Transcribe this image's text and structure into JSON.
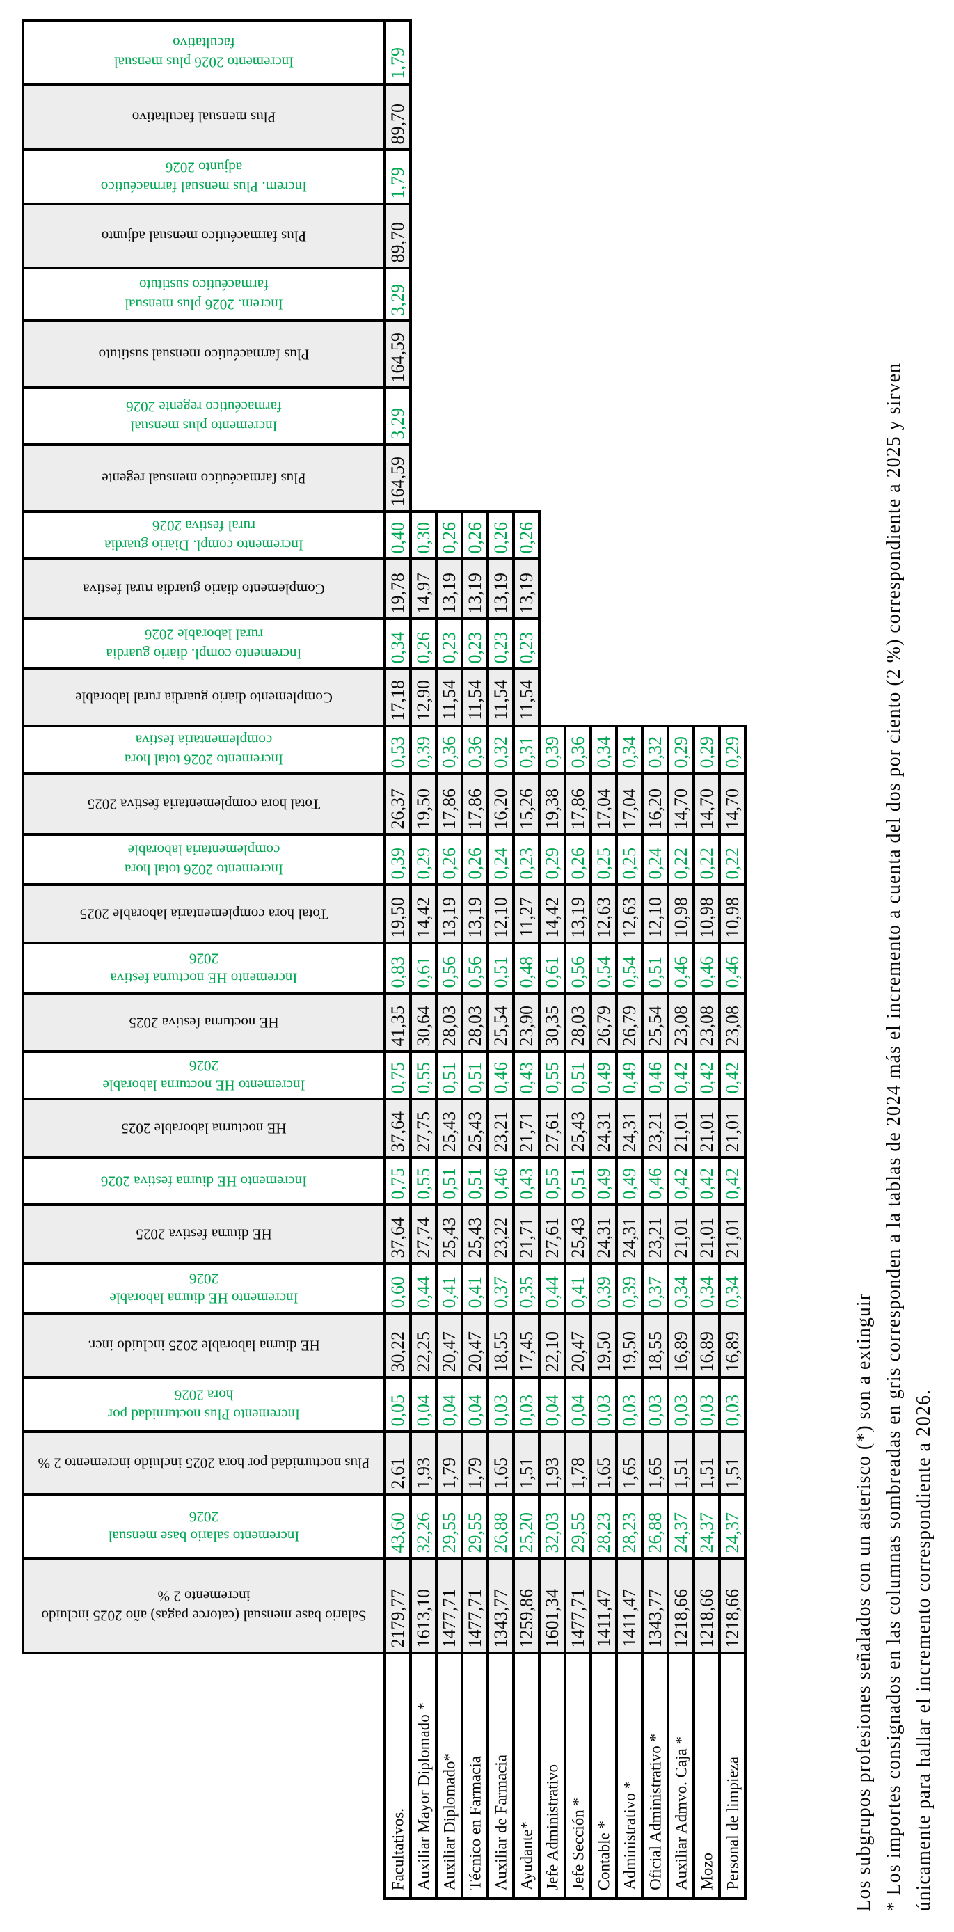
{
  "colors": {
    "green_text": "#00a651",
    "shaded_bg": "#ededed",
    "border": "#000000"
  },
  "table": {
    "categories": [
      "Facultativos.",
      "Auxiliar Mayor Diplomado *",
      "Auxiliar Diplomado*",
      "Técnico en Farmacia",
      "Auxiliar de Farmacia",
      "Ayudante*",
      "Jefe Administrativo",
      "Jefe Sección *",
      "Contable *",
      "Administrativo *",
      "Oficial Administrativo *",
      "Auxiliar Admvo. Caja *",
      "Mozo",
      "Personal de limpieza"
    ],
    "rows": [
      {
        "label": "Incremento 2026 plus mensual facultativo",
        "type": "increment",
        "values": [
          "1,79"
        ]
      },
      {
        "label": "Plus mensual facultativo",
        "type": "base",
        "values": [
          "89,70"
        ]
      },
      {
        "label": "Increm. Plus mensual farmacéutico adjunto 2026",
        "type": "increment",
        "values": [
          "1,79"
        ]
      },
      {
        "label": "Plus farmacéutico mensual adjunto",
        "type": "base",
        "values": [
          "89,70"
        ]
      },
      {
        "label": "Increm. 2026 plus mensual farmacéutico sustituto",
        "type": "increment",
        "values": [
          "3,29"
        ]
      },
      {
        "label": "Plus farmacéutico mensual sustituto",
        "type": "base",
        "values": [
          "164,59"
        ]
      },
      {
        "label": "Incremento plus mensual farmacéutico regente 2026",
        "type": "increment",
        "values": [
          "3,29"
        ]
      },
      {
        "label": "Plus farmacéutico mensual regente",
        "type": "base",
        "values": [
          "164,59"
        ]
      },
      {
        "label": "Incremento compl. Diario guardia rural festiva 2026",
        "type": "increment",
        "values": [
          "0,40",
          "0,30",
          "0,26",
          "0,26",
          "0,26",
          "0,26"
        ]
      },
      {
        "label": "Complemento diario guardia rural festiva",
        "type": "base",
        "values": [
          "19,78",
          "14,97",
          "13,19",
          "13,19",
          "13,19",
          "13,19"
        ]
      },
      {
        "label": "Incremento compl. diario guardia rural laborable 2026",
        "type": "increment",
        "values": [
          "0,34",
          "0,26",
          "0,23",
          "0,23",
          "0,23",
          "0,23"
        ]
      },
      {
        "label": "Complemento diario guardia rural laborable",
        "type": "base",
        "values": [
          "17,18",
          "12,90",
          "11,54",
          "11,54",
          "11,54",
          "11,54"
        ]
      },
      {
        "label": "Incremento 2026 total hora complementaria festiva",
        "type": "increment",
        "values": [
          "0,53",
          "0,39",
          "0,36",
          "0,36",
          "0,32",
          "0,31",
          "0,39",
          "0,36",
          "0,34",
          "0,34",
          "0,32",
          "0,29",
          "0,29",
          "0,29"
        ]
      },
      {
        "label": "Total hora complementaria festiva 2025",
        "type": "base",
        "values": [
          "26,37",
          "19,50",
          "17,86",
          "17,86",
          "16,20",
          "15,26",
          "19,38",
          "17,86",
          "17,04",
          "17,04",
          "16,20",
          "14,70",
          "14,70",
          "14,70"
        ]
      },
      {
        "label": "Incremento 2026 total hora complementaria laborable",
        "type": "increment",
        "values": [
          "0,39",
          "0,29",
          "0,26",
          "0,26",
          "0,24",
          "0,23",
          "0,29",
          "0,26",
          "0,25",
          "0,25",
          "0,24",
          "0,22",
          "0,22",
          "0,22"
        ]
      },
      {
        "label": "Total hora complementaria laborable 2025",
        "type": "base",
        "values": [
          "19,50",
          "14,42",
          "13,19",
          "13,19",
          "12,10",
          "11,27",
          "14,42",
          "13,19",
          "12,63",
          "12,63",
          "12,10",
          "10,98",
          "10,98",
          "10,98"
        ]
      },
      {
        "label": "Incremento HE nocturna festiva 2026",
        "type": "increment",
        "values": [
          "0,83",
          "0,61",
          "0,56",
          "0,56",
          "0,51",
          "0,48",
          "0,61",
          "0,56",
          "0,54",
          "0,54",
          "0,51",
          "0,46",
          "0,46",
          "0,46"
        ]
      },
      {
        "label": "HE nocturna festiva 2025",
        "type": "base",
        "values": [
          "41,35",
          "30,64",
          "28,03",
          "28,03",
          "25,54",
          "23,90",
          "30,35",
          "28,03",
          "26,79",
          "26,79",
          "25,54",
          "23,08",
          "23,08",
          "23,08"
        ]
      },
      {
        "label": "Incremento HE nocturna laborable 2026",
        "type": "increment",
        "values": [
          "0,75",
          "0,55",
          "0,51",
          "0,51",
          "0,46",
          "0,43",
          "0,55",
          "0,51",
          "0,49",
          "0,49",
          "0,46",
          "0,42",
          "0,42",
          "0,42"
        ]
      },
      {
        "label": "HE nocturna laborable 2025",
        "type": "base",
        "values": [
          "37,64",
          "27,75",
          "25,43",
          "25,43",
          "23,21",
          "21,71",
          "27,61",
          "25,43",
          "24,31",
          "24,31",
          "23,21",
          "21,01",
          "21,01",
          "21,01"
        ]
      },
      {
        "label": "Incremento HE diurna festiva 2026",
        "type": "increment",
        "values": [
          "0,75",
          "0,55",
          "0,51",
          "0,51",
          "0,46",
          "0,43",
          "0,55",
          "0,51",
          "0,49",
          "0,49",
          "0,46",
          "0,42",
          "0,42",
          "0,42"
        ]
      },
      {
        "label": "HE diurna festiva 2025",
        "type": "base",
        "values": [
          "37,64",
          "27,74",
          "25,43",
          "25,43",
          "23,22",
          "21,71",
          "27,61",
          "25,43",
          "24,31",
          "24,31",
          "23,21",
          "21,01",
          "21,01",
          "21,01"
        ]
      },
      {
        "label": "Incremento HE diurna laborable 2026",
        "type": "increment",
        "values": [
          "0,60",
          "0,44",
          "0,41",
          "0,41",
          "0,37",
          "0,35",
          "0,44",
          "0,41",
          "0,39",
          "0,39",
          "0,37",
          "0,34",
          "0,34",
          "0,34"
        ]
      },
      {
        "label": "HE diurna laborable 2025 incluido incr.",
        "type": "base",
        "values": [
          "30,22",
          "22,25",
          "20,47",
          "20,47",
          "18,55",
          "17,45",
          "22,10",
          "20,47",
          "19,50",
          "19,50",
          "18,55",
          "16,89",
          "16,89",
          "16,89"
        ]
      },
      {
        "label": "Incremento Plus nocturnidad por hora 2026",
        "type": "increment",
        "values": [
          "0,05",
          "0,04",
          "0,04",
          "0,04",
          "0,03",
          "0,03",
          "0,04",
          "0,04",
          "0,03",
          "0,03",
          "0,03",
          "0,03",
          "0,03",
          "0,03"
        ]
      },
      {
        "label": "Plus nocturnidad por  hora 2025 incluido incremento 2 %",
        "type": "base",
        "values": [
          "2,61",
          "1,93",
          "1,79",
          "1,79",
          "1,65",
          "1,51",
          "1,93",
          "1,78",
          "1,65",
          "1,65",
          "1,65",
          "1,51",
          "1,51",
          "1,51"
        ]
      },
      {
        "label": "Incremento salario base mensual 2026",
        "type": "increment",
        "values": [
          "43,60",
          "32,26",
          "29,55",
          "29,55",
          "26,88",
          "25,20",
          "32,03",
          "29,55",
          "28,23",
          "28,23",
          "26,88",
          "24,37",
          "24,37",
          "24,37"
        ]
      },
      {
        "label": "Salario base mensual (catorce pagas) año 2025 incluido incremento 2 %",
        "type": "base",
        "values": [
          "2179,77",
          "1613,10",
          "1477,71",
          "1477,71",
          "1343,77",
          "1259,86",
          "1601,34",
          "1477,71",
          "1411,47",
          "1411,47",
          "1343,77",
          "1218,66",
          "1218,66",
          "1218,66"
        ]
      }
    ]
  },
  "notes": {
    "line1": "Los subgrupos profesiones señalados con un asterisco (*) son a extinguir",
    "line2": "* Los importes consignados en las columnas sombreadas en gris corresponden a la tablas de 2024 más el incremento a cuenta del dos por ciento (2 %) correspondiente a 2025 y sirven",
    "line3": "únicamente para hallar el incremento correspondiente a 2026."
  }
}
